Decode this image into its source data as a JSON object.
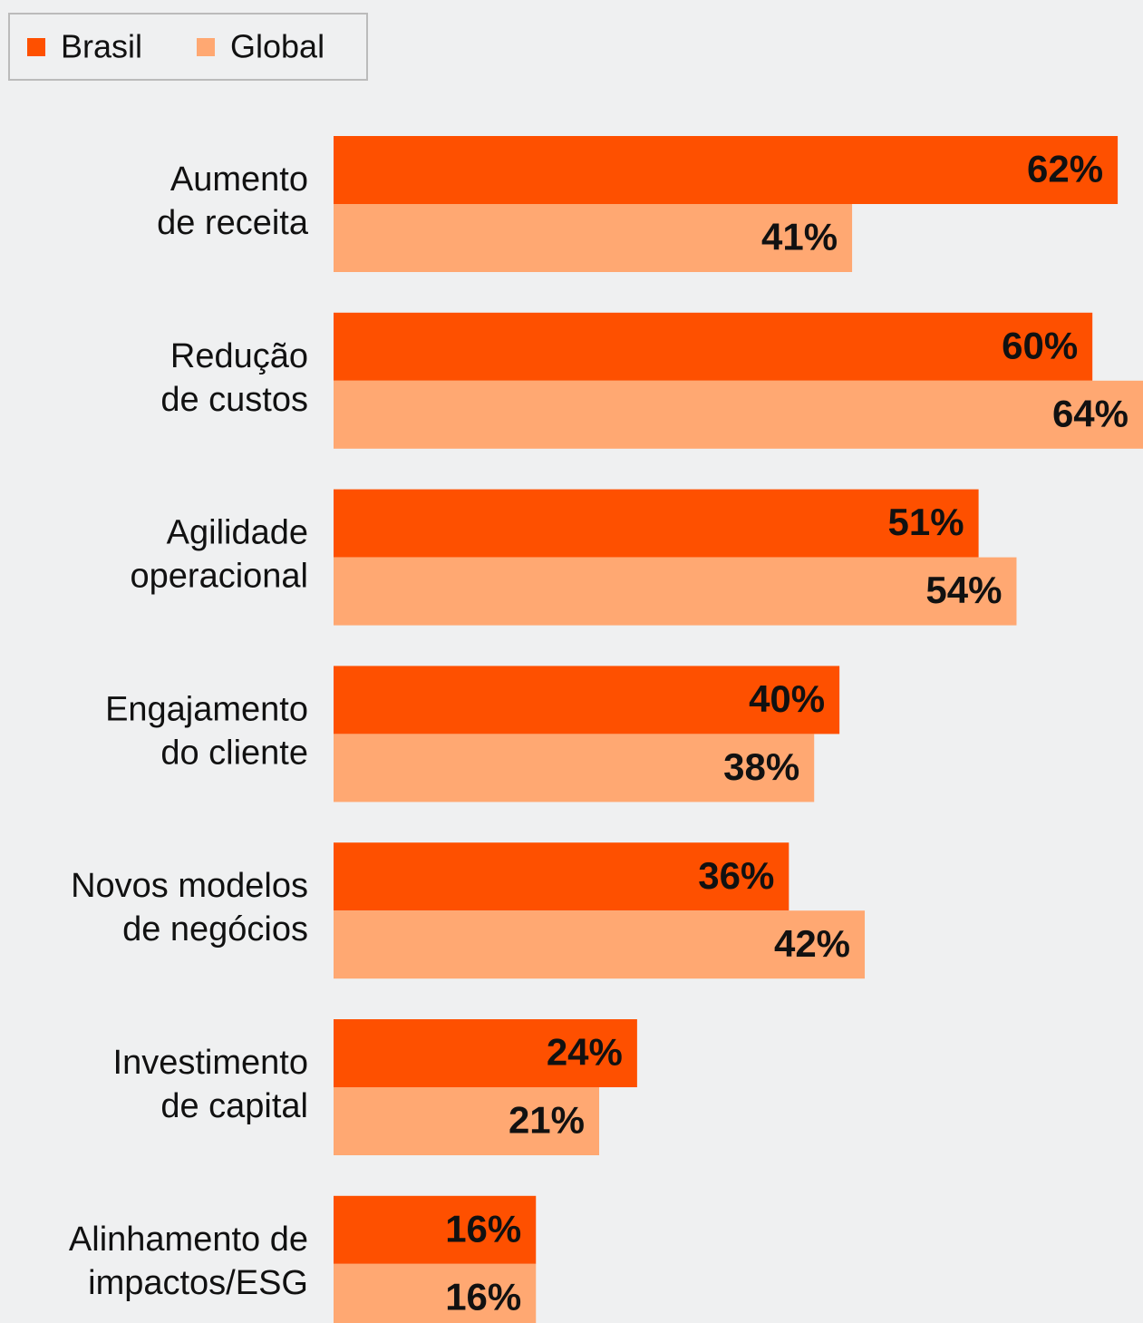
{
  "chart_data": {
    "type": "hbar",
    "categories": [
      [
        "Aumento",
        "de receita"
      ],
      [
        "Redução",
        "de custos"
      ],
      [
        "Agilidade",
        "operacional"
      ],
      [
        "Engajamento",
        "do cliente"
      ],
      [
        "Novos modelos",
        "de negócios"
      ],
      [
        "Investimento",
        "de capital"
      ],
      [
        "Alinhamento de",
        "impactos/ESG"
      ]
    ],
    "series": [
      {
        "name": "Brasil",
        "color": "#fe5000",
        "values": [
          62,
          60,
          51,
          40,
          36,
          24,
          16
        ],
        "value_labels": [
          "62%",
          "60%",
          "51%",
          "40%",
          "36%",
          "24%",
          "16%"
        ]
      },
      {
        "name": "Global",
        "color": "#ffa872",
        "values": [
          41,
          64,
          54,
          38,
          42,
          21,
          16
        ],
        "value_labels": [
          "41%",
          "64%",
          "54%",
          "38%",
          "42%",
          "21%",
          "16%"
        ]
      }
    ],
    "xlim": [
      0,
      64
    ],
    "legend": "top-left"
  }
}
